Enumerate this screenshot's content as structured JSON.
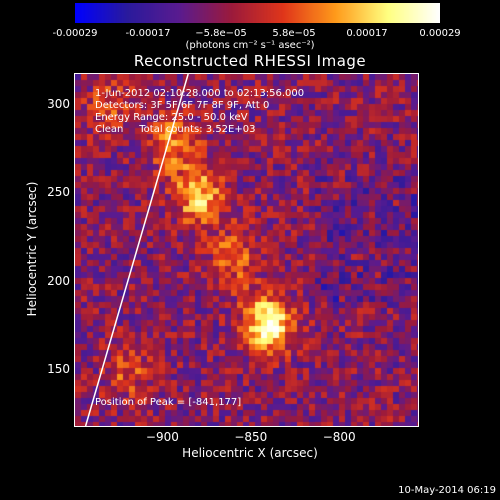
{
  "chart_data": {
    "type": "heatmap",
    "title": "Reconstructed RHESSI Image",
    "colorbar": {
      "ticks": [
        "-0.00029",
        "-0.00017",
        "−5.8e−05",
        "5.8e−05",
        "0.00017",
        "0.00029"
      ],
      "units_label": "(photons cm⁻² s⁻¹ asec⁻²)",
      "colors": [
        "#0000ff",
        "#2a1a9c",
        "#5a1b8f",
        "#9b1a3c",
        "#e0361a",
        "#ff9a1a",
        "#ffff80",
        "#ffffff"
      ]
    },
    "xlabel": "Heliocentric X (arcsec)",
    "ylabel": "Heliocentric Y (arcsec)",
    "xlim": [
      -950,
      -756
    ],
    "ylim": [
      119,
      318
    ],
    "xticks": [
      "−900",
      "−850",
      "−800"
    ],
    "xtick_values": [
      -900,
      -850,
      -800
    ],
    "yticks": [
      "300",
      "250",
      "200",
      "150"
    ],
    "ytick_values": [
      300,
      250,
      200,
      150
    ],
    "sources": [
      {
        "x": -841,
        "y": 177,
        "amplitude": 1.0
      },
      {
        "x": -880,
        "y": 250,
        "amplitude": 0.75
      },
      {
        "x": -895,
        "y": 280,
        "amplitude": 0.55
      },
      {
        "x": -860,
        "y": 215,
        "amplitude": 0.45
      },
      {
        "x": -920,
        "y": 150,
        "amplitude": 0.35
      },
      {
        "x": -930,
        "y": 300,
        "amplitude": 0.35
      }
    ],
    "annotations": [
      "1-Jun-2012 02:10:28.000 to 02:13:56.000",
      "Detectors: 3F 5F 6F 7F 8F 9F, Att 0",
      "Energy Range: 25.0 - 50.0 keV",
      "Clean     Total counts: 3.52E+03"
    ],
    "peak_label": "Position of Peak = [-841,177]",
    "limb_line": [
      {
        "x": -944,
        "y": 119
      },
      {
        "x": -886,
        "y": 318
      }
    ]
  },
  "footer": "10-May-2014 06:19"
}
